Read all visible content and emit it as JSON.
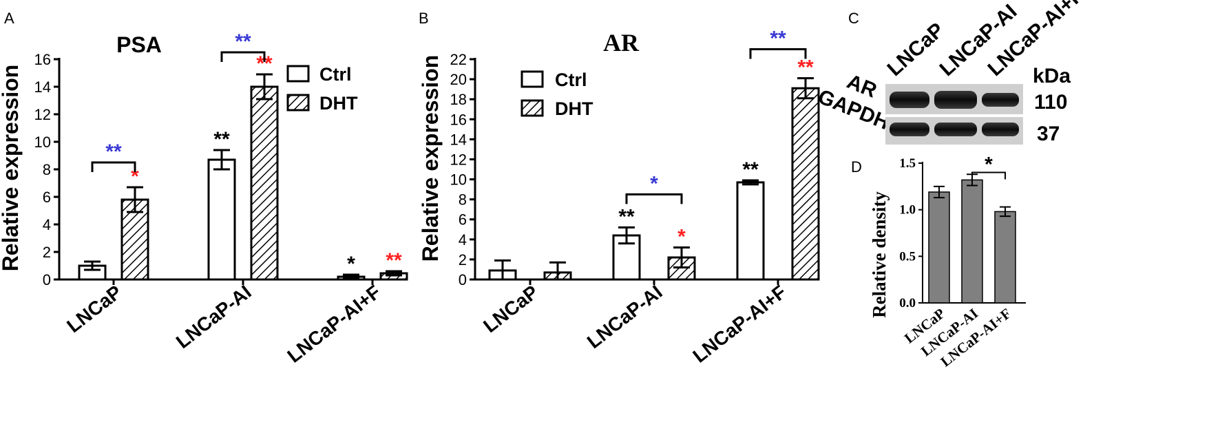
{
  "colors": {
    "black": "#000000",
    "blue": "#3b3bd6",
    "red": "#ff1f1f",
    "density_bar": "#808080"
  },
  "chart_data": [
    {
      "panel": "A",
      "type": "bar",
      "title": "PSA",
      "ylabel": "Relative expression",
      "ylim": [
        0,
        16
      ],
      "yticks": [
        0,
        2,
        4,
        6,
        8,
        10,
        12,
        14,
        16
      ],
      "categories": [
        "LNCaP",
        "LNCaP-AI",
        "LNCaP-AI+F"
      ],
      "legend": "top-right",
      "series": [
        {
          "name": "Ctrl",
          "pattern": "open",
          "values": [
            1.0,
            8.7,
            0.2
          ],
          "errors": [
            0.3,
            0.7,
            0.15
          ]
        },
        {
          "name": "DHT",
          "pattern": "hatched",
          "values": [
            5.8,
            14.0,
            0.45
          ],
          "errors": [
            0.9,
            0.9,
            0.15
          ]
        }
      ],
      "annotations": [
        {
          "text": "*",
          "color": "red",
          "category": 0,
          "series": 1
        },
        {
          "text": "**",
          "color": "black",
          "category": 1,
          "series": 0
        },
        {
          "text": "**",
          "color": "red",
          "category": 1,
          "series": 1
        },
        {
          "text": "*",
          "color": "black",
          "category": 2,
          "series": 0
        },
        {
          "text": "**",
          "color": "red",
          "category": 2,
          "series": 1
        }
      ],
      "brackets": [
        {
          "text": "**",
          "color": "blue",
          "category": 0,
          "y": 8.5
        },
        {
          "text": "**",
          "color": "blue",
          "category": 1,
          "y": 16.5
        }
      ]
    },
    {
      "panel": "B",
      "type": "bar",
      "title": "AR",
      "ylabel": "Relative expression",
      "ylim": [
        0,
        22
      ],
      "yticks": [
        0,
        2,
        4,
        6,
        8,
        10,
        12,
        14,
        16,
        18,
        20,
        22
      ],
      "categories": [
        "LNCaP",
        "LNCaP-AI",
        "LNCaP-AI+F"
      ],
      "legend": "top-left",
      "series": [
        {
          "name": "Ctrl",
          "pattern": "open",
          "values": [
            0.9,
            4.4,
            9.7
          ],
          "errors": [
            1.0,
            0.8,
            0.2
          ]
        },
        {
          "name": "DHT",
          "pattern": "hatched",
          "values": [
            0.7,
            2.2,
            19.1
          ],
          "errors": [
            1.0,
            1.0,
            1.0
          ]
        }
      ],
      "annotations": [
        {
          "text": "**",
          "color": "black",
          "category": 1,
          "series": 0
        },
        {
          "text": "*",
          "color": "red",
          "category": 1,
          "series": 1
        },
        {
          "text": "**",
          "color": "black",
          "category": 2,
          "series": 0
        },
        {
          "text": "**",
          "color": "red",
          "category": 2,
          "series": 1
        }
      ],
      "brackets": [
        {
          "text": "*",
          "color": "blue",
          "category": 1,
          "y": 8.5
        },
        {
          "text": "**",
          "color": "blue",
          "category": 2,
          "y": 23.0
        }
      ]
    },
    {
      "panel": "D",
      "type": "bar",
      "title": "",
      "ylabel": "Relative density",
      "ylim": [
        0,
        1.5
      ],
      "yticks": [
        "0.0",
        "0.5",
        "1.0",
        "1.5"
      ],
      "categories": [
        "LNCaP",
        "LNCaP-AI",
        "LNCaP-AI+F"
      ],
      "series": [
        {
          "values": [
            1.19,
            1.32,
            0.98
          ],
          "errors": [
            0.06,
            0.06,
            0.05
          ]
        }
      ],
      "brackets": [
        {
          "text": "*",
          "color": "black",
          "from": 1,
          "to": 2,
          "y": 1.4
        }
      ]
    }
  ],
  "blot": {
    "panel": "C",
    "lanes": [
      "LNCaP",
      "LNCaP-AI",
      "LNCaP-AI+F"
    ],
    "unit": "kDa",
    "rows": [
      {
        "protein": "AR",
        "kda": "110"
      },
      {
        "protein": "GAPDH",
        "kda": "37"
      }
    ]
  }
}
